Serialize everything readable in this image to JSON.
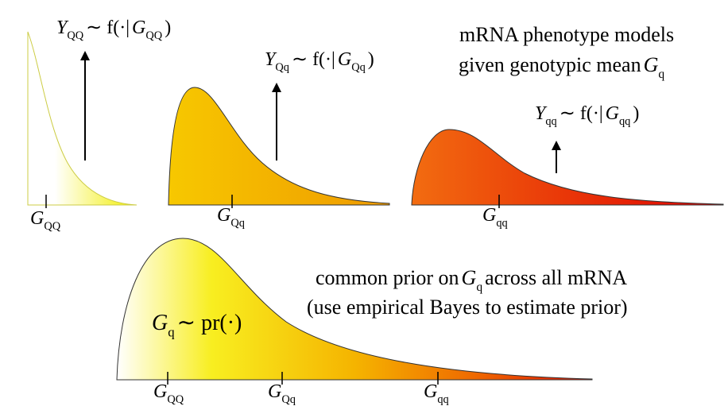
{
  "title": {
    "line1": "mRNA phenotype models",
    "line2": "given genotypic mean",
    "var": "G",
    "sub": "q"
  },
  "models": [
    {
      "y": "Y",
      "ysub": "QQ",
      "f": "∼ f(·|",
      "g": "G",
      "gsub": "QQ",
      "close": ")",
      "mean": "G",
      "mean_sub": "QQ"
    },
    {
      "y": "Y",
      "ysub": "Qq",
      "f": "∼ f(·|",
      "g": "G",
      "gsub": "Qq",
      "close": ")",
      "mean": "G",
      "mean_sub": "Qq"
    },
    {
      "y": "Y",
      "ysub": "qq",
      "f": "∼ f(·|",
      "g": "G",
      "gsub": "qq",
      "close": ")",
      "mean": "G",
      "mean_sub": "qq"
    }
  ],
  "prior": {
    "line1": "common prior on",
    "var": "G",
    "sub": "q",
    "line1_end": "across all mRNA",
    "line2": "(use empirical Bayes to estimate prior)",
    "expr_var": "G",
    "expr_sub": "q",
    "expr": "∼ pr(·)",
    "ticks": [
      {
        "g": "G",
        "sub": "QQ"
      },
      {
        "g": "G",
        "sub": "Qq"
      },
      {
        "g": "G",
        "sub": "qq"
      }
    ]
  }
}
